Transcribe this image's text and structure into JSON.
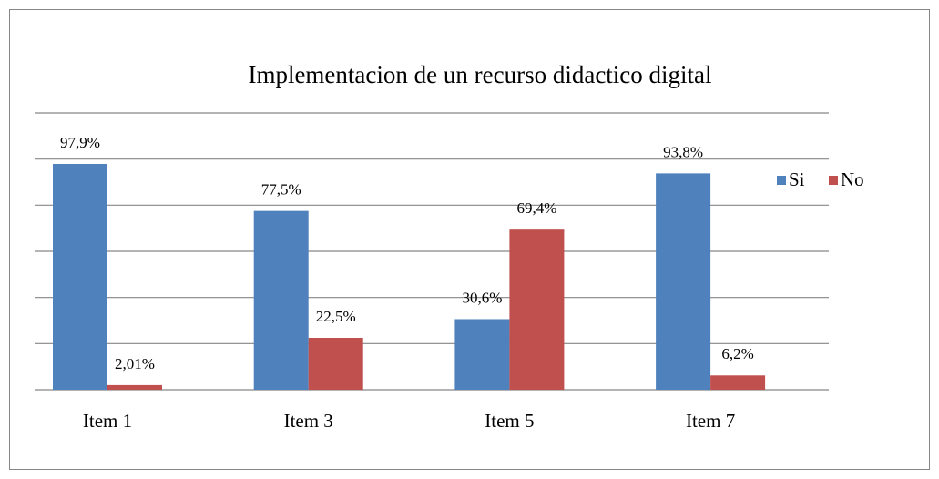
{
  "chart_data": {
    "type": "bar",
    "title": "Implementacion de un recurso didactico digital",
    "categories": [
      "Item 1",
      "Item 3",
      "Item 5",
      "Item 7"
    ],
    "series": [
      {
        "name": "Si",
        "color": "#4f81bd",
        "values": [
          97.9,
          77.5,
          30.6,
          93.8
        ],
        "value_labels": [
          "97,9%",
          "77,5%",
          "30,6%",
          "93,8%"
        ]
      },
      {
        "name": "No",
        "color": "#c0504d",
        "values": [
          2.01,
          22.5,
          69.4,
          6.2
        ],
        "value_labels": [
          "2,01%",
          "22,5%",
          "69,4%",
          "6,2%"
        ]
      }
    ],
    "ylim": [
      0,
      120
    ],
    "yticks": [
      0,
      20,
      40,
      60,
      80,
      100,
      120
    ],
    "grid": true,
    "legend": "right"
  }
}
